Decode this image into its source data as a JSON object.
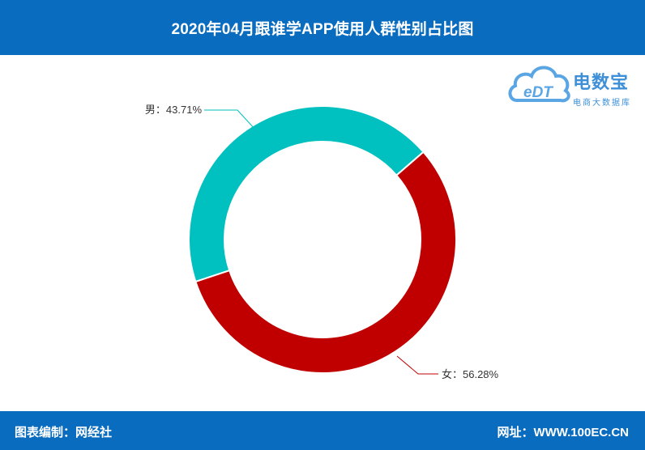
{
  "header": {
    "title": "2020年04月跟谁学APP使用人群性别占比图"
  },
  "footer": {
    "left_text": "图表编制：网经社",
    "right_text": "网址：WWW.100EC.CN"
  },
  "logo": {
    "name": "电数宝",
    "subtitle": "电商大数据库",
    "mark_text": "eDT"
  },
  "colors": {
    "header_bg": "#0a6cbf",
    "male": "#00c0c0",
    "female": "#c00000"
  },
  "chart_data": {
    "type": "pie",
    "donut": true,
    "title": "2020年04月跟谁学APP使用人群性别占比图",
    "slices": [
      {
        "name": "男",
        "value": 43.71,
        "label": "男：43.71%",
        "color": "#00c0c0"
      },
      {
        "name": "女",
        "value": 56.28,
        "label": "女：56.28%",
        "color": "#c00000"
      }
    ],
    "legend": "none"
  }
}
